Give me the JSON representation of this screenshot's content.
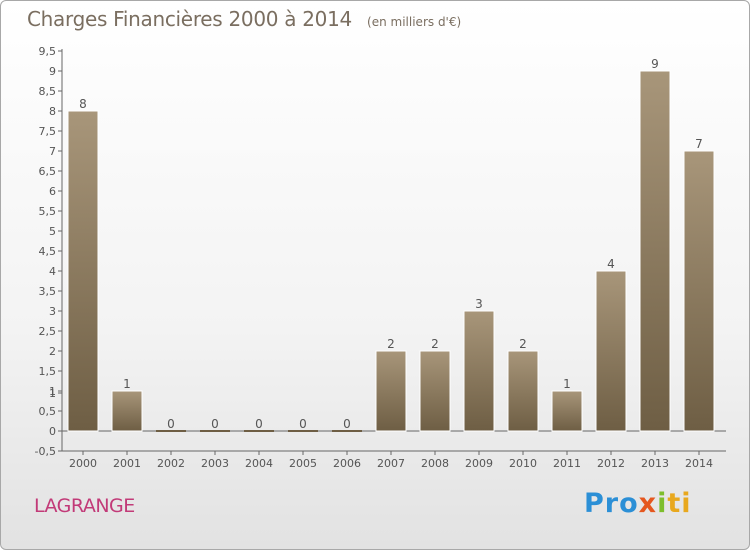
{
  "header": {
    "title": "Charges Financières 2000 à 2014",
    "unit": "(en milliers d'€)"
  },
  "footer": {
    "commune": "LAGRANGE",
    "logo_parts": [
      "Pro",
      "x",
      "i",
      "ti"
    ]
  },
  "colors": {
    "bar_top": "#a8967a",
    "bar_bottom": "#6e5e44",
    "bar_stroke": "#ffffff",
    "title": "#7a6e60",
    "commune": "#c23a78"
  },
  "chart_data": {
    "type": "bar",
    "title": "Charges Financières 2000 à 2014",
    "subtitle": "(en milliers d'€)",
    "xlabel": "",
    "ylabel": "",
    "categories": [
      "2000",
      "2001",
      "2002",
      "2003",
      "2004",
      "2005",
      "2006",
      "2007",
      "2008",
      "2009",
      "2010",
      "2011",
      "2012",
      "2013",
      "2014"
    ],
    "values": [
      8,
      1,
      0,
      0,
      0,
      0,
      0,
      2,
      2,
      3,
      2,
      1,
      4,
      9,
      7
    ],
    "data_labels": [
      "8",
      "1",
      "0",
      "0",
      "0",
      "0",
      "0",
      "2",
      "2",
      "3",
      "2",
      "1",
      "4",
      "9",
      "7"
    ],
    "ylim": [
      -0.5,
      9.5
    ],
    "y_ticks": [
      "-0,5",
      "0",
      "0,5",
      "1",
      "1",
      "1,5",
      "2",
      "2,5",
      "3",
      "3,5",
      "4",
      "4,5",
      "5",
      "5,5",
      "6",
      "6,5",
      "7",
      "7,5",
      "8",
      "8,5",
      "9",
      "9,5"
    ],
    "y_tick_values": [
      -0.5,
      0,
      0.5,
      0.95,
      1,
      1.5,
      2,
      2.5,
      3,
      3.5,
      4,
      4.5,
      5,
      5.5,
      6,
      6.5,
      7,
      7.5,
      8,
      8.5,
      9,
      9.5
    ],
    "grid": false,
    "legend": "none"
  }
}
